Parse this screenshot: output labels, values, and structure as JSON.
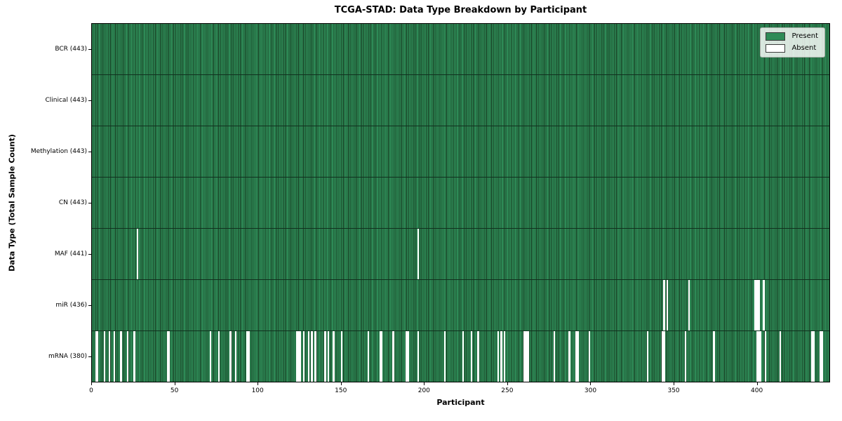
{
  "title": "TCGA-STAD: Data Type Breakdown by Participant",
  "xlabel": "Participant",
  "ylabel": "Data Type (Total Sample Count)",
  "legend": [
    {
      "label": "Present",
      "color": "#2e8b57"
    },
    {
      "label": "Absent",
      "color": "#ffffff"
    }
  ],
  "colors": {
    "present_fill": "#2e8b57",
    "bar_edge": "#16381f",
    "absent_fill": "#ffffff",
    "row_separator": "#10301e",
    "spine": "#000000"
  },
  "chart_data": {
    "type": "heatmap",
    "description": "Presence/absence matrix: one column per participant, one row per data type",
    "total_participants": 443,
    "x_axis_max": 444,
    "x_ticks": [
      0,
      50,
      100,
      150,
      200,
      250,
      300,
      350,
      400
    ],
    "rows": [
      {
        "name": "BCR",
        "label": "BCR (443)",
        "present_count": 443,
        "absent_participants": []
      },
      {
        "name": "Clinical",
        "label": "Clinical (443)",
        "present_count": 443,
        "absent_participants": []
      },
      {
        "name": "Methylation",
        "label": "Methylation (443)",
        "present_count": 443,
        "absent_participants": []
      },
      {
        "name": "CN",
        "label": "CN (443)",
        "present_count": 443,
        "absent_participants": []
      },
      {
        "name": "MAF",
        "label": "MAF (441)",
        "present_count": 441,
        "absent_participants": [
          27,
          196
        ]
      },
      {
        "name": "miR",
        "label": "miR (436)",
        "present_count": 436,
        "absent_participants": [
          344,
          346,
          359,
          399,
          400,
          401,
          404
        ]
      },
      {
        "name": "mRNA",
        "label": "mRNA (380)",
        "present_count": 380,
        "absent_participants": [
          2,
          3,
          7,
          10,
          13,
          17,
          21,
          25,
          45,
          46,
          71,
          76,
          83,
          86,
          93,
          94,
          123,
          124,
          125,
          127,
          130,
          132,
          134,
          140,
          142,
          145,
          150,
          166,
          173,
          174,
          181,
          189,
          190,
          196,
          212,
          223,
          228,
          232,
          244,
          246,
          248,
          260,
          261,
          262,
          278,
          287,
          291,
          292,
          299,
          334,
          343,
          344,
          357,
          374,
          400,
          401,
          402,
          405,
          414,
          433,
          434,
          438,
          439
        ]
      }
    ]
  }
}
